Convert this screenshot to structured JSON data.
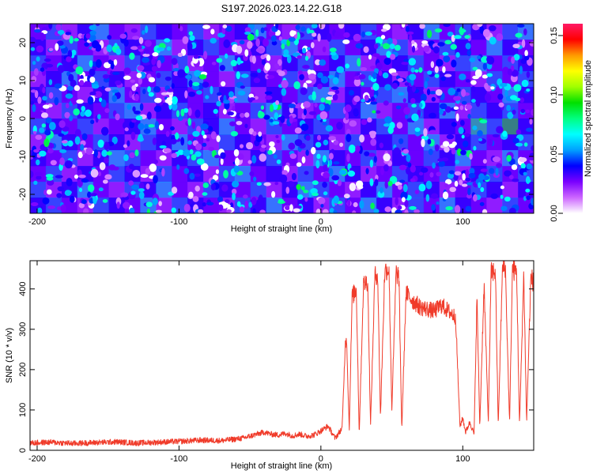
{
  "title": "S197.2026.023.14.22.G18",
  "chart_data": [
    {
      "type": "heatmap",
      "xlabel": "Height of straight line (km)",
      "ylabel": "Frequency (Hz)",
      "xlim": [
        -205,
        150
      ],
      "ylim": [
        -25,
        25
      ],
      "xticks": [
        -200,
        -100,
        0,
        100
      ],
      "xtick_labels": [
        "-200",
        "-100",
        "0",
        "100"
      ],
      "yticks": [
        -20,
        -10,
        0,
        10,
        20
      ],
      "ytick_labels": [
        "-20",
        "-10",
        "0",
        "10",
        "20"
      ],
      "colorbar": {
        "label": "Normalized spectral amplitude",
        "range": [
          0,
          0.16
        ],
        "ticks": [
          0,
          0.05,
          0.1,
          0.15
        ],
        "tick_labels": [
          "0.00",
          "0.05",
          "0.10",
          "0.15"
        ],
        "colors": [
          "#ffffff",
          "#cc66ff",
          "#7a00ff",
          "#0000ff",
          "#00a0ff",
          "#00ffff",
          "#00ff80",
          "#00e000",
          "#a0ff00",
          "#ffff00",
          "#ff9900",
          "#ff0000",
          "#ff1a66"
        ]
      },
      "cell_values": [
        [
          0.03,
          0.05,
          0.02,
          0.04,
          0.06,
          0.03,
          0.02,
          0.05,
          0.04,
          0.03,
          0.05,
          0.02,
          0.03,
          0.04,
          0.06,
          0.03,
          0.02,
          0.05,
          0.04,
          0.03,
          0.04,
          0.05,
          0.03,
          0.02,
          0.04,
          0.06,
          0.03,
          0.05,
          0.04,
          0.02,
          0.05,
          0.06
        ],
        [
          0.04,
          0.02,
          0.05,
          0.03,
          0.02,
          0.05,
          0.04,
          0.03,
          0.06,
          0.02,
          0.04,
          0.05,
          0.03,
          0.02,
          0.04,
          0.05,
          0.06,
          0.03,
          0.02,
          0.05,
          0.03,
          0.04,
          0.06,
          0.05,
          0.02,
          0.03,
          0.05,
          0.04,
          0.03,
          0.06,
          0.04,
          0.03
        ],
        [
          0.05,
          0.03,
          0.04,
          0.06,
          0.03,
          0.02,
          0.05,
          0.04,
          0.03,
          0.05,
          0.02,
          0.03,
          0.06,
          0.04,
          0.03,
          0.02,
          0.04,
          0.05,
          0.03,
          0.04,
          0.06,
          0.02,
          0.03,
          0.04,
          0.05,
          0.03,
          0.02,
          0.05,
          0.06,
          0.03,
          0.05,
          0.04
        ],
        [
          0.02,
          0.04,
          0.06,
          0.03,
          0.05,
          0.04,
          0.02,
          0.03,
          0.05,
          0.04,
          0.06,
          0.03,
          0.02,
          0.05,
          0.04,
          0.03,
          0.05,
          0.02,
          0.04,
          0.06,
          0.03,
          0.05,
          0.04,
          0.02,
          0.03,
          0.05,
          0.04,
          0.03,
          0.02,
          0.05,
          0.03,
          0.05
        ],
        [
          0.04,
          0.05,
          0.03,
          0.02,
          0.04,
          0.06,
          0.03,
          0.05,
          0.02,
          0.04,
          0.03,
          0.05,
          0.04,
          0.06,
          0.02,
          0.04,
          0.03,
          0.05,
          0.06,
          0.02,
          0.04,
          0.03,
          0.05,
          0.06,
          0.04,
          0.02,
          0.03,
          0.05,
          0.04,
          0.03,
          0.06,
          0.04
        ],
        [
          0.03,
          0.02,
          0.05,
          0.04,
          0.03,
          0.05,
          0.06,
          0.02,
          0.04,
          0.05,
          0.03,
          0.04,
          0.02,
          0.03,
          0.05,
          0.06,
          0.04,
          0.02,
          0.03,
          0.05,
          0.04,
          0.06,
          0.02,
          0.03,
          0.05,
          0.04,
          0.06,
          0.02,
          0.05,
          0.04,
          0.05,
          0.03
        ],
        [
          0.05,
          0.04,
          0.03,
          0.05,
          0.02,
          0.03,
          0.04,
          0.06,
          0.03,
          0.02,
          0.05,
          0.04,
          0.06,
          0.03,
          0.02,
          0.05,
          0.03,
          0.04,
          0.05,
          0.03,
          0.02,
          0.04,
          0.05,
          0.03,
          0.06,
          0.02,
          0.04,
          0.03,
          0.08,
          0.05,
          0.09,
          0.04
        ],
        [
          0.02,
          0.06,
          0.04,
          0.03,
          0.05,
          0.04,
          0.02,
          0.05,
          0.04,
          0.06,
          0.03,
          0.02,
          0.05,
          0.04,
          0.03,
          0.02,
          0.06,
          0.05,
          0.04,
          0.02,
          0.05,
          0.03,
          0.04,
          0.05,
          0.03,
          0.06,
          0.02,
          0.04,
          0.05,
          0.03,
          0.04,
          0.05
        ],
        [
          0.04,
          0.03,
          0.05,
          0.02,
          0.04,
          0.06,
          0.05,
          0.03,
          0.02,
          0.04,
          0.05,
          0.06,
          0.03,
          0.02,
          0.04,
          0.05,
          0.03,
          0.02,
          0.06,
          0.04,
          0.03,
          0.05,
          0.02,
          0.04,
          0.03,
          0.05,
          0.04,
          0.06,
          0.03,
          0.02,
          0.06,
          0.03
        ],
        [
          0.03,
          0.05,
          0.02,
          0.04,
          0.03,
          0.05,
          0.04,
          0.02,
          0.05,
          0.03,
          0.04,
          0.02,
          0.05,
          0.06,
          0.03,
          0.04,
          0.02,
          0.05,
          0.03,
          0.06,
          0.04,
          0.02,
          0.03,
          0.05,
          0.04,
          0.03,
          0.05,
          0.02,
          0.04,
          0.05,
          0.03,
          0.05
        ],
        [
          0.05,
          0.02,
          0.04,
          0.06,
          0.03,
          0.02,
          0.05,
          0.04,
          0.06,
          0.03,
          0.02,
          0.05,
          0.04,
          0.03,
          0.05,
          0.02,
          0.04,
          0.06,
          0.05,
          0.03,
          0.02,
          0.04,
          0.06,
          0.03,
          0.05,
          0.04,
          0.02,
          0.03,
          0.05,
          0.04,
          0.02,
          0.04
        ],
        [
          0.04,
          0.05,
          0.03,
          0.02,
          0.05,
          0.04,
          0.03,
          0.06,
          0.02,
          0.05,
          0.04,
          0.03,
          0.02,
          0.05,
          0.04,
          0.06,
          0.03,
          0.04,
          0.02,
          0.05,
          0.03,
          0.06,
          0.04,
          0.02,
          0.05,
          0.03,
          0.06,
          0.04,
          0.03,
          0.02,
          0.05,
          0.03
        ]
      ]
    },
    {
      "type": "line",
      "xlabel": "Height of straight line (km)",
      "ylabel": "SNR (10 * v/v)",
      "xlim": [
        -205,
        150
      ],
      "ylim": [
        0,
        470
      ],
      "xticks": [
        -200,
        -100,
        0,
        100
      ],
      "xtick_labels": [
        "-200",
        "-100",
        "0",
        "100"
      ],
      "yticks": [
        0,
        100,
        200,
        300,
        400
      ],
      "ytick_labels": [
        "0",
        "100",
        "200",
        "300",
        "400"
      ],
      "color": "#f03b2a",
      "series": [
        {
          "name": "SNR",
          "x": [
            -205,
            -190,
            -175,
            -160,
            -145,
            -130,
            -115,
            -100,
            -85,
            -70,
            -55,
            -40,
            -35,
            -30,
            -25,
            -20,
            -15,
            -10,
            -5,
            0,
            5,
            10,
            15,
            17,
            18,
            20,
            22,
            25,
            27,
            30,
            33,
            35,
            38,
            40,
            42,
            45,
            48,
            50,
            53,
            55,
            57,
            60,
            65,
            70,
            75,
            80,
            85,
            90,
            95,
            98,
            100,
            102,
            105,
            108,
            110,
            112,
            115,
            118,
            120,
            123,
            125,
            128,
            130,
            133,
            135,
            138,
            140,
            143,
            145,
            148,
            150
          ],
          "values": [
            18,
            20,
            17,
            19,
            21,
            18,
            20,
            22,
            25,
            24,
            30,
            45,
            40,
            38,
            42,
            36,
            40,
            35,
            38,
            48,
            60,
            30,
            55,
            250,
            290,
            50,
            380,
            400,
            40,
            410,
            420,
            60,
            430,
            440,
            80,
            445,
            450,
            100,
            440,
            430,
            50,
            390,
            370,
            355,
            350,
            345,
            360,
            345,
            330,
            60,
            80,
            45,
            70,
            40,
            380,
            60,
            410,
            70,
            440,
            445,
            60,
            450,
            455,
            65,
            450,
            440,
            60,
            440,
            70,
            430,
            415
          ]
        }
      ]
    }
  ]
}
